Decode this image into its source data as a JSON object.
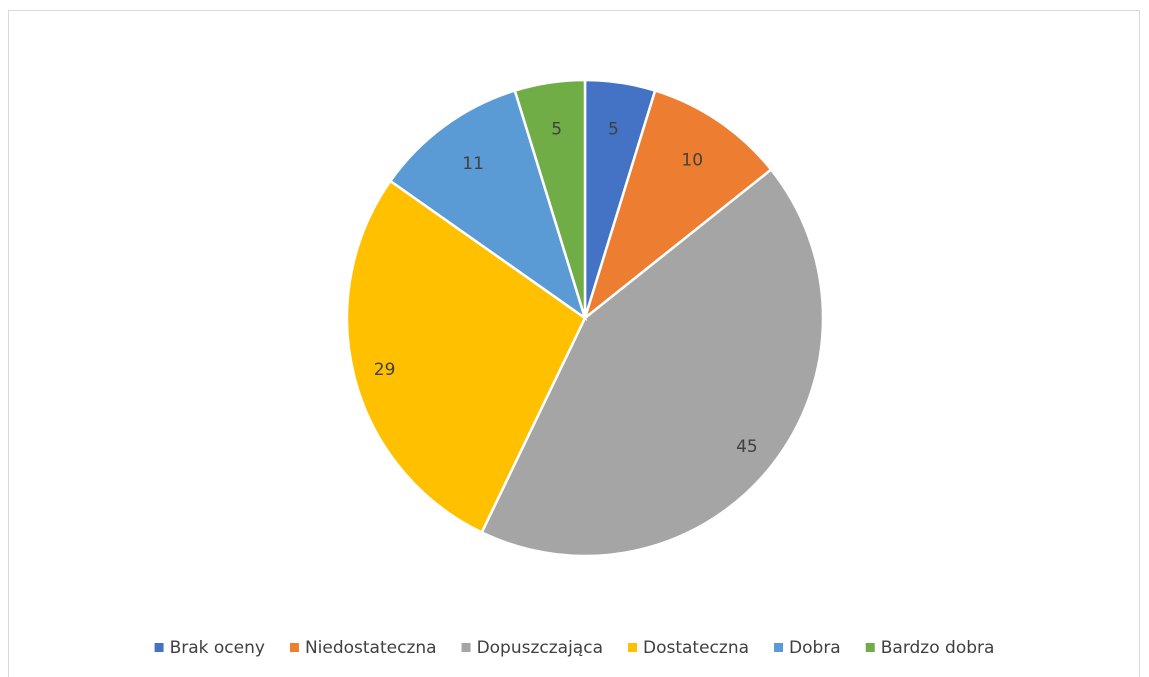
{
  "chart_data": {
    "type": "pie",
    "categories": [
      "Brak oceny",
      "Niedostateczna",
      "Dopuszczająca",
      "Dostateczna",
      "Dobra",
      "Bardzo dobra"
    ],
    "values": [
      5,
      10,
      45,
      29,
      11,
      5
    ],
    "colors": [
      "#4472c4",
      "#ed7d31",
      "#a5a5a5",
      "#ffc000",
      "#5b9bd5",
      "#70ad47"
    ],
    "legend": "bottom"
  }
}
